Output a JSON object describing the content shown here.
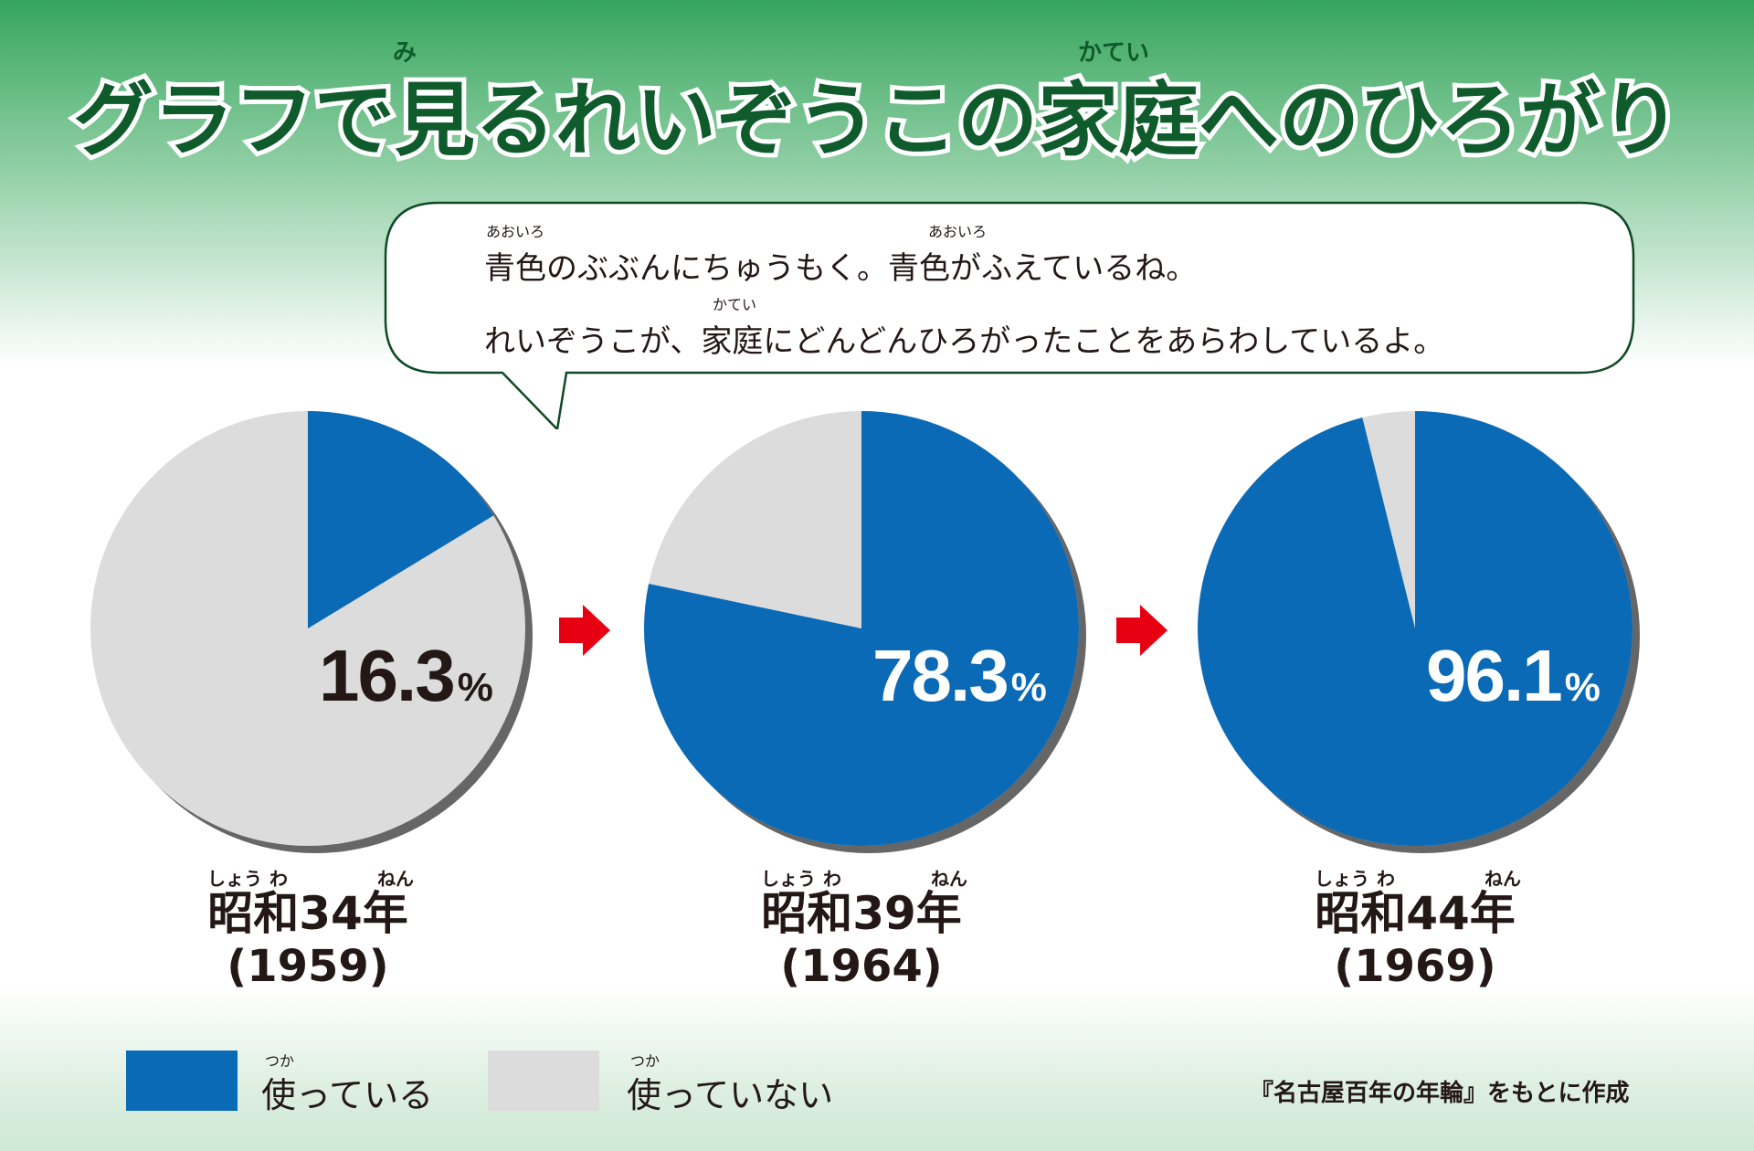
{
  "title": {
    "text": "グラフで見るれいぞうこの家庭へのひろがり",
    "ruby_mi": "み",
    "ruby_katei": "かてい"
  },
  "bubble": {
    "line1": "青色のぶぶんにちゅうもく。青色がふえているね。",
    "line1_ruby_a": "あおいろ",
    "line1_ruby_b": "あおいろ",
    "line2": "れいぞうこが、家庭にどんどんひろがったことをあらわしているよ。",
    "line2_ruby": "かてい"
  },
  "colors": {
    "used": "#0a6ab6",
    "unused": "#dcdcdc",
    "arrow": "#e60012",
    "title_fill": "#0f5b2c",
    "shadow": "#666666"
  },
  "chart_data": [
    {
      "type": "pie",
      "era_label": "昭和34年",
      "era_ruby": [
        "しょう",
        "わ",
        "ねん"
      ],
      "year_label": "(1959)",
      "value": 16.3,
      "percent_text": "16.3",
      "percent_symbol": "%",
      "slices": [
        {
          "name": "使っている",
          "value": 16.3
        },
        {
          "name": "使っていない",
          "value": 83.7
        }
      ]
    },
    {
      "type": "pie",
      "era_label": "昭和39年",
      "era_ruby": [
        "しょう",
        "わ",
        "ねん"
      ],
      "year_label": "(1964)",
      "value": 78.3,
      "percent_text": "78.3",
      "percent_symbol": "%",
      "slices": [
        {
          "name": "使っている",
          "value": 78.3
        },
        {
          "name": "使っていない",
          "value": 21.7
        }
      ]
    },
    {
      "type": "pie",
      "era_label": "昭和44年",
      "era_ruby": [
        "しょう",
        "わ",
        "ねん"
      ],
      "year_label": "(1969)",
      "value": 96.1,
      "percent_text": "96.1",
      "percent_symbol": "%",
      "slices": [
        {
          "name": "使っている",
          "value": 96.1
        },
        {
          "name": "使っていない",
          "value": 3.9
        }
      ]
    }
  ],
  "legend": {
    "used_label": "使っている",
    "used_ruby": "つか",
    "unused_label": "使っていない",
    "unused_ruby": "つか"
  },
  "source": "『名古屋百年の年輪』をもとに作成"
}
